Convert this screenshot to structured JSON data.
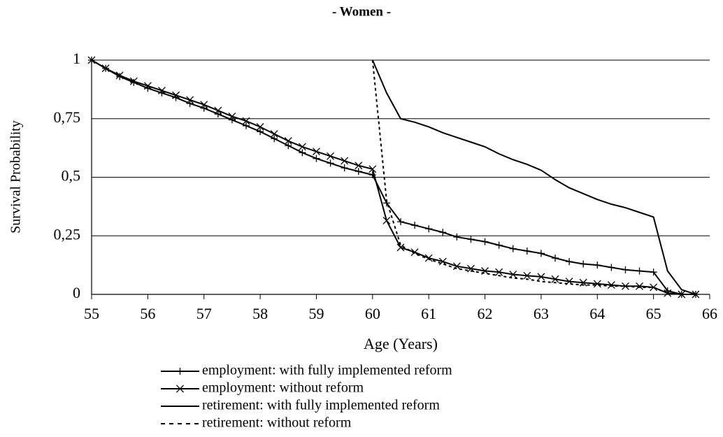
{
  "chart_data": {
    "type": "line",
    "title": "- Women -",
    "x_label": "Age (Years)",
    "y_label": "Survival Probability",
    "x": [
      55,
      55.25,
      55.5,
      55.75,
      56,
      56.25,
      56.5,
      56.75,
      57,
      57.25,
      57.5,
      57.75,
      58,
      58.25,
      58.5,
      58.75,
      59,
      59.25,
      59.5,
      59.75,
      60,
      60.25,
      60.5,
      60.75,
      61,
      61.25,
      61.5,
      61.75,
      62,
      62.25,
      62.5,
      62.75,
      63,
      63.25,
      63.5,
      63.75,
      64,
      64.25,
      64.5,
      64.75,
      65,
      65.25,
      65.5,
      65.75
    ],
    "series": [
      {
        "name": "employment: with fully implemented reform",
        "color": "#000000",
        "marker": "plus",
        "dash": "solid",
        "values": [
          1,
          0.965,
          0.93,
          0.905,
          0.88,
          0.86,
          0.84,
          0.815,
          0.795,
          0.77,
          0.745,
          0.72,
          0.695,
          0.665,
          0.635,
          0.605,
          0.58,
          0.56,
          0.54,
          0.525,
          0.51,
          0.39,
          0.31,
          0.295,
          0.28,
          0.265,
          0.245,
          0.235,
          0.225,
          0.21,
          0.195,
          0.185,
          0.175,
          0.155,
          0.14,
          0.13,
          0.125,
          0.115,
          0.105,
          0.1,
          0.095,
          0.015,
          0,
          0
        ]
      },
      {
        "name": "employment: without reform",
        "color": "#000000",
        "marker": "x",
        "dash": "solid",
        "values": [
          1,
          0.965,
          0.935,
          0.91,
          0.89,
          0.87,
          0.85,
          0.83,
          0.81,
          0.785,
          0.76,
          0.74,
          0.715,
          0.685,
          0.655,
          0.63,
          0.61,
          0.59,
          0.57,
          0.55,
          0.535,
          0.315,
          0.2,
          0.18,
          0.155,
          0.14,
          0.12,
          0.11,
          0.1,
          0.095,
          0.085,
          0.08,
          0.075,
          0.065,
          0.055,
          0.05,
          0.045,
          0.04,
          0.035,
          0.035,
          0.03,
          0.005,
          0,
          0
        ]
      },
      {
        "name": "retirement: with fully implemented reform",
        "color": "#000000",
        "marker": "none",
        "dash": "solid",
        "values": [
          null,
          null,
          null,
          null,
          null,
          null,
          null,
          null,
          null,
          null,
          null,
          null,
          null,
          null,
          null,
          null,
          null,
          null,
          null,
          null,
          1,
          0.86,
          0.75,
          0.735,
          0.715,
          0.69,
          0.67,
          0.65,
          0.63,
          0.6,
          0.575,
          0.555,
          0.53,
          0.49,
          0.455,
          0.43,
          0.405,
          0.385,
          0.37,
          0.35,
          0.33,
          0.1,
          0.02,
          0
        ]
      },
      {
        "name": "retirement: without reform",
        "color": "#000000",
        "marker": "none",
        "dash": "dashed",
        "values": [
          null,
          null,
          null,
          null,
          null,
          null,
          null,
          null,
          null,
          null,
          null,
          null,
          null,
          null,
          null,
          null,
          null,
          null,
          null,
          null,
          1,
          0.4,
          0.21,
          0.175,
          0.15,
          0.13,
          0.11,
          0.1,
          0.09,
          0.08,
          0.07,
          0.065,
          0.055,
          0.05,
          0.045,
          0.04,
          0.04,
          0.035,
          0.035,
          0.03,
          0.03,
          0.005,
          0,
          0
        ]
      }
    ],
    "xlim": [
      55,
      66
    ],
    "xticks": [
      55,
      56,
      57,
      58,
      59,
      60,
      61,
      62,
      63,
      64,
      65,
      66
    ],
    "ylim": [
      0,
      1
    ],
    "yticks": [
      0,
      {
        "value": 0.25,
        "label": "0,25"
      },
      {
        "value": 0.5,
        "label": "0,5"
      },
      {
        "value": 0.75,
        "label": "0,75"
      },
      1
    ],
    "grid": true,
    "legend": "bottom"
  }
}
